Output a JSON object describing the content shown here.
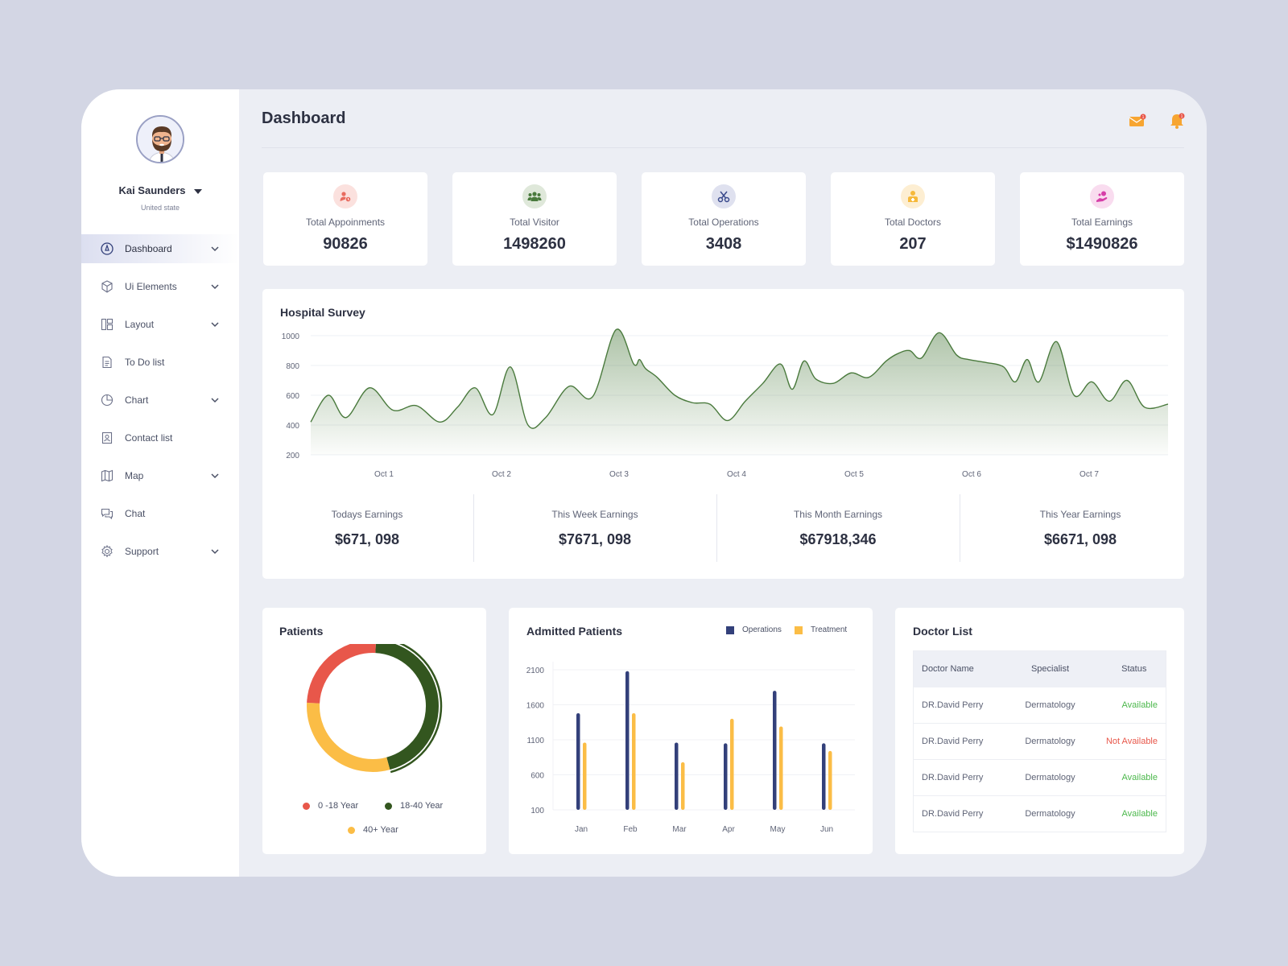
{
  "user": {
    "name": "Kai Saunders",
    "location": "United state"
  },
  "nav": [
    {
      "label": "Dashboard",
      "icon": "dashboard-icon",
      "expandable": true,
      "active": true
    },
    {
      "label": "Ui Elements",
      "icon": "cube-icon",
      "expandable": true
    },
    {
      "label": "Layout",
      "icon": "layout-icon",
      "expandable": true
    },
    {
      "label": "To Do list",
      "icon": "document-icon",
      "expandable": false
    },
    {
      "label": "Chart",
      "icon": "pie-chart-icon",
      "expandable": true
    },
    {
      "label": "Contact list",
      "icon": "contact-book-icon",
      "expandable": false
    },
    {
      "label": "Map",
      "icon": "map-icon",
      "expandable": true
    },
    {
      "label": "Chat",
      "icon": "chat-icon",
      "expandable": false
    },
    {
      "label": "Support",
      "icon": "gear-icon",
      "expandable": true
    }
  ],
  "header": {
    "title": "Dashboard",
    "mail_badge": "1",
    "bell_badge": "1"
  },
  "stats": [
    {
      "label": "Total Appoinments",
      "value": "90826",
      "icon": "appointment-icon",
      "color": "#e86b5f",
      "bg": "#fbe1de"
    },
    {
      "label": "Total Visitor",
      "value": "1498260",
      "icon": "group-icon",
      "color": "#4a7a3d",
      "bg": "#dfe8da"
    },
    {
      "label": "Total Operations",
      "value": "3408",
      "icon": "scissors-icon",
      "color": "#3a4a8c",
      "bg": "#dfe1ef"
    },
    {
      "label": "Total Doctors",
      "value": "207",
      "icon": "doctor-icon",
      "color": "#f6b93b",
      "bg": "#fdeed2"
    },
    {
      "label": "Total Earnings",
      "value": "$1490826",
      "icon": "earnings-icon",
      "color": "#d63fa8",
      "bg": "#f9dcef"
    }
  ],
  "survey": {
    "title": "Hospital Survey",
    "earnings": [
      {
        "label": "Todays Earnings",
        "value": "$671, 098"
      },
      {
        "label": "This Week Earnings",
        "value": "$7671, 098"
      },
      {
        "label": "This Month Earnings",
        "value": "$67918,346"
      },
      {
        "label": "This Year Earnings",
        "value": "$6671, 098"
      }
    ]
  },
  "patients": {
    "title": "Patients",
    "legend": [
      {
        "label": "0 -18 Year",
        "color": "#e8574a"
      },
      {
        "label": "18-40 Year",
        "color": "#33561f"
      },
      {
        "label": "40+ Year",
        "color": "#fbbd46"
      }
    ]
  },
  "admitted": {
    "title": "Admitted Patients",
    "legend": [
      {
        "label": "Operations",
        "color": "#33407a"
      },
      {
        "label": "Treatment",
        "color": "#fbbd46"
      }
    ]
  },
  "doctors": {
    "title": "Doctor List",
    "columns": [
      "Doctor Name",
      "Specialist",
      "Status"
    ],
    "rows": [
      {
        "name": "DR.David Perry",
        "specialist": "Dermatology",
        "status": "Available",
        "available": true
      },
      {
        "name": "DR.David Perry",
        "specialist": "Dermatology",
        "status": "Not Available",
        "available": false
      },
      {
        "name": "DR.David Perry",
        "specialist": "Dermatology",
        "status": "Available",
        "available": true
      },
      {
        "name": "DR.David Perry",
        "specialist": "Dermatology",
        "status": "Available",
        "available": true
      }
    ]
  },
  "chart_data": [
    {
      "type": "area",
      "title": "Hospital Survey",
      "x_ticks": [
        "Oct 1",
        "Oct 2",
        "Oct 3",
        "Oct 4",
        "Oct 5",
        "Oct 6",
        "Oct 7"
      ],
      "y_ticks": [
        200,
        400,
        600,
        800,
        1000
      ],
      "ylim": [
        200,
        1000
      ],
      "grid": true,
      "color": "#4a7a3d",
      "x": [
        0.0,
        0.15,
        0.3,
        0.5,
        0.7,
        0.9,
        1.1,
        1.25,
        1.4,
        1.55,
        1.7,
        1.85,
        2.0,
        2.2,
        2.4,
        2.6,
        2.75,
        2.8,
        2.85,
        2.95,
        3.1,
        3.25,
        3.4,
        3.55,
        3.7,
        3.85,
        4.0,
        4.1,
        4.2,
        4.3,
        4.45,
        4.6,
        4.75,
        4.9,
        5.0,
        5.1,
        5.2,
        5.35,
        5.5,
        5.6,
        5.75,
        5.9,
        6.0,
        6.1,
        6.2,
        6.35,
        6.5,
        6.65,
        6.8,
        6.95,
        7.1,
        7.3
      ],
      "y": [
        420,
        600,
        450,
        650,
        500,
        530,
        420,
        520,
        650,
        470,
        790,
        400,
        450,
        660,
        590,
        1040,
        810,
        840,
        780,
        720,
        600,
        550,
        540,
        430,
        560,
        680,
        810,
        640,
        830,
        710,
        680,
        750,
        720,
        830,
        880,
        900,
        850,
        1020,
        870,
        840,
        820,
        790,
        690,
        840,
        690,
        960,
        600,
        690,
        560,
        700,
        520,
        540
      ]
    },
    {
      "type": "donut",
      "title": "Patients",
      "series": [
        {
          "name": "0 -18 Year",
          "value": 25
        },
        {
          "name": "18-40 Year",
          "value": 45
        },
        {
          "name": "40+ Year",
          "value": 30
        }
      ]
    },
    {
      "type": "bar",
      "title": "Admitted Patients",
      "categories": [
        "Jan",
        "Feb",
        "Mar",
        "Apr",
        "May",
        "Jun"
      ],
      "y_ticks": [
        100,
        600,
        1100,
        1600,
        2100
      ],
      "ylim": [
        100,
        2100
      ],
      "series": [
        {
          "name": "Operations",
          "values": [
            1480,
            2080,
            1060,
            1050,
            1800,
            1050
          ]
        },
        {
          "name": "Treatment",
          "values": [
            1060,
            1480,
            780,
            1400,
            1290,
            940
          ]
        }
      ]
    }
  ]
}
